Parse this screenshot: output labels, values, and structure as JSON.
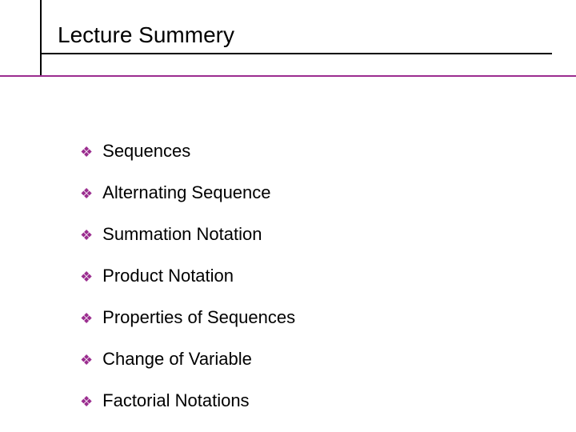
{
  "slide": {
    "title": "Lecture Summery",
    "title_fontsize": 28,
    "title_color": "#000000",
    "background_color": "#ffffff",
    "accent_color": "#9b2d8f",
    "line_color_primary": "#000000",
    "bullets": [
      {
        "label": "Sequences"
      },
      {
        "label": "Alternating Sequence"
      },
      {
        "label": "Summation Notation"
      },
      {
        "label": "Product Notation"
      },
      {
        "label": "Properties of Sequences"
      },
      {
        "label": "Change of Variable"
      },
      {
        "label": "Factorial Notations"
      }
    ],
    "bullet_fontsize": 22,
    "bullet_text_color": "#000000",
    "bullet_icon": "❖",
    "bullet_icon_color": "#9b2d8f"
  }
}
